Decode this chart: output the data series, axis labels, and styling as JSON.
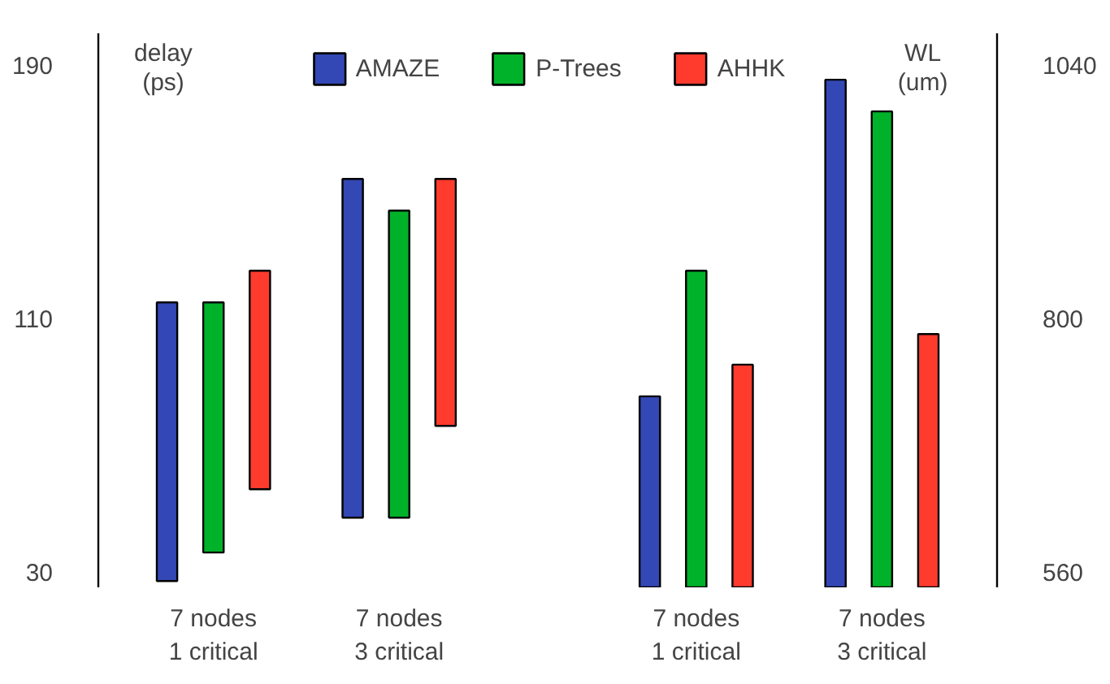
{
  "chart_data": [
    {
      "type": "bar",
      "ylabel": "delay\n(ps)",
      "categories": [
        "7 nodes\n1 critical",
        "7 nodes\n3 critical"
      ],
      "ylim": [
        25,
        200
      ],
      "yticks": [
        30,
        110,
        190
      ],
      "legend": "top",
      "series": [
        {
          "name": "AMAZE",
          "color": "#3348b5",
          "values": [
            88,
            107
          ],
          "base": [
            27,
            47
          ]
        },
        {
          "name": "P-Trees",
          "color": "#00b22a",
          "values": [
            79,
            97
          ],
          "base": [
            36,
            47
          ]
        },
        {
          "name": "AHHK",
          "color": "#ff3b2e",
          "values": [
            69,
            78
          ],
          "base": [
            56,
            76
          ]
        }
      ]
    },
    {
      "type": "bar",
      "y2label": "WL\n(um)",
      "categories": [
        "7 nodes\n1 critical",
        "7 nodes\n3 critical"
      ],
      "y2lim": [
        545,
        1070
      ],
      "y2ticks": [
        560,
        800,
        1040
      ],
      "legend": "top",
      "series": [
        {
          "name": "AMAZE",
          "color": "#3348b5",
          "values": [
            726,
            1026
          ],
          "axis": "y2"
        },
        {
          "name": "P-Trees",
          "color": "#00b22a",
          "values": [
            845,
            996
          ],
          "axis": "y2"
        },
        {
          "name": "AHHK",
          "color": "#ff3b2e",
          "values": [
            756,
            785
          ],
          "axis": "y2"
        }
      ]
    }
  ]
}
